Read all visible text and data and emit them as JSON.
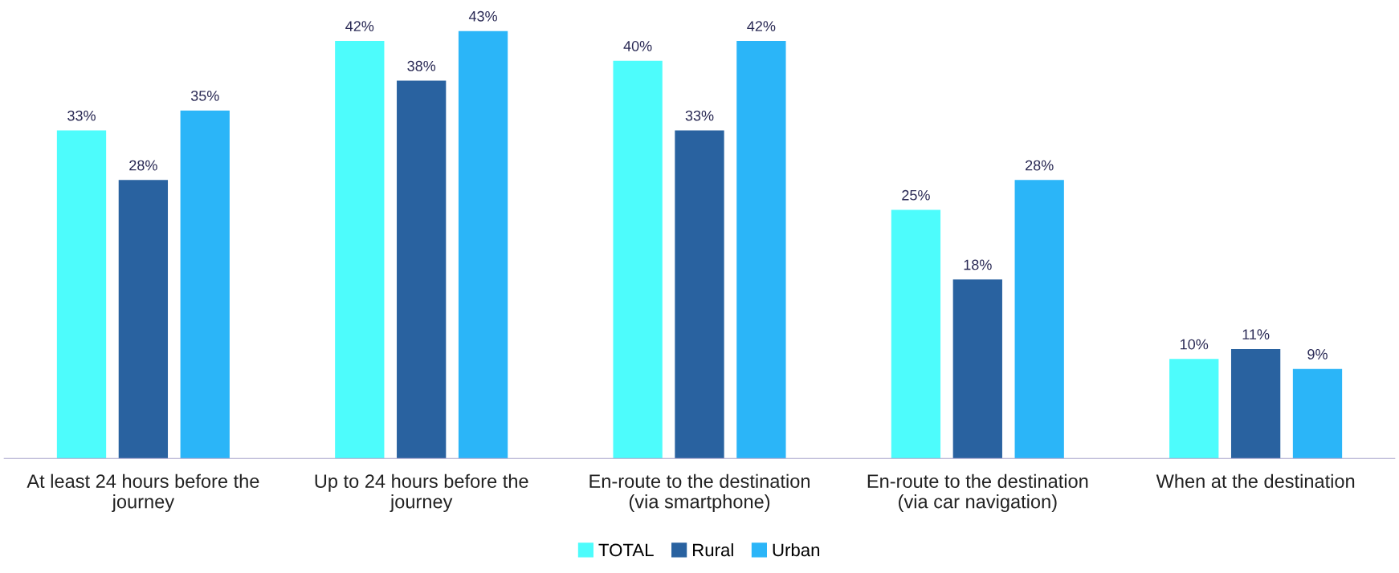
{
  "chart_data": {
    "type": "bar",
    "categories": [
      "At least 24 hours before the\njourney",
      "Up to 24 hours before the\njourney",
      "En-route to the destination\n(via smartphone)",
      "En-route to the destination\n(via car navigation)",
      "When at the destination"
    ],
    "series": [
      {
        "name": "TOTAL",
        "color": "#4dfcfc",
        "values": [
          33,
          42,
          40,
          25,
          10
        ],
        "value_labels": [
          "33%",
          "42%",
          "40%",
          "25%",
          "10%"
        ]
      },
      {
        "name": "Rural",
        "color": "#2962a0",
        "values": [
          28,
          38,
          33,
          18,
          11
        ],
        "value_labels": [
          "28%",
          "38%",
          "33%",
          "18%",
          "11%"
        ]
      },
      {
        "name": "Urban",
        "color": "#2bb5f8",
        "values": [
          35,
          43,
          42,
          28,
          9
        ],
        "value_labels": [
          "35%",
          "43%",
          "42%",
          "28%",
          "9%"
        ]
      }
    ],
    "legend": "bottom",
    "grid": false
  }
}
